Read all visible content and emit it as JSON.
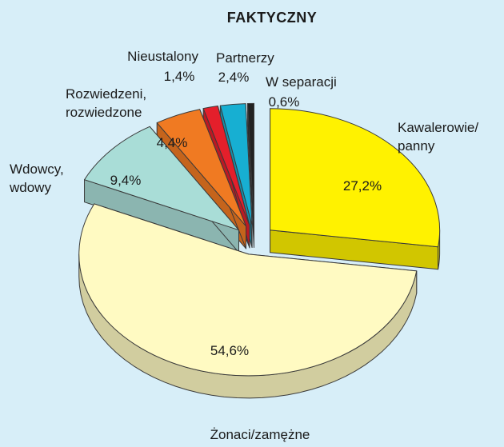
{
  "chart_data": {
    "type": "pie",
    "title": "FAKTYCZNY",
    "categories": [
      "Kawalerowie/\npanny",
      "Żonaci/zamężne",
      "Wdowcy,\nwdowy",
      "Rozwiedzeni,\nrozwiedzone",
      "Nieustalony",
      "Partnerzy",
      "W separacji"
    ],
    "values": [
      27.2,
      54.6,
      9.4,
      4.4,
      1.4,
      2.4,
      0.6
    ],
    "value_labels": [
      "27,2%",
      "54,6%",
      "9,4%",
      "4,4%",
      "1,4%",
      "2,4%",
      "0,6%"
    ],
    "colors": [
      "#fff200",
      "#fffac2",
      "#a9ddd7",
      "#f07a22",
      "#e41f2b",
      "#17afd2",
      "#222222"
    ]
  }
}
